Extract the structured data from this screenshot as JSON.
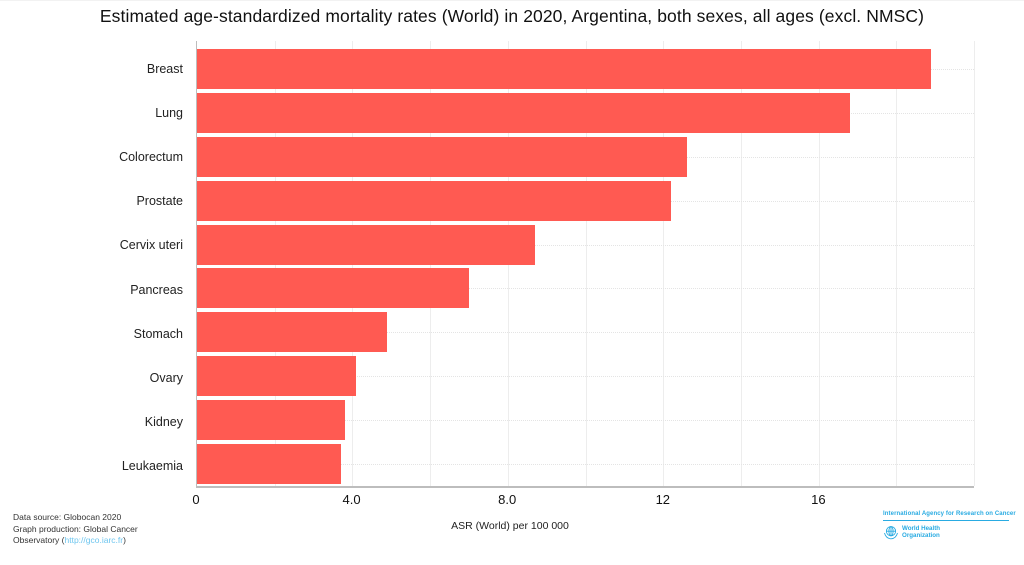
{
  "chart_data": {
    "type": "bar",
    "orientation": "horizontal",
    "title": "Estimated age-standardized mortality rates (World) in 2020, Argentina, both sexes, all ages (excl. NMSC)",
    "categories": [
      "Breast",
      "Lung",
      "Colorectum",
      "Prostate",
      "Cervix uteri",
      "Pancreas",
      "Stomach",
      "Ovary",
      "Kidney",
      "Leukaemia"
    ],
    "values": [
      18.9,
      16.8,
      12.6,
      12.2,
      8.7,
      7.0,
      4.9,
      4.1,
      3.8,
      3.7
    ],
    "xlabel": "ASR (World) per 100 000",
    "ylabel": "",
    "xlim": [
      0,
      20
    ],
    "xticks": [
      {
        "value": 0,
        "label": "0"
      },
      {
        "value": 4,
        "label": "4.0"
      },
      {
        "value": 8,
        "label": "8.0"
      },
      {
        "value": 12,
        "label": "12"
      },
      {
        "value": 16,
        "label": "16"
      }
    ],
    "grid_step": 2,
    "grid": "on",
    "legend": "none"
  },
  "colors": {
    "bar": "#FF5A52",
    "logo_blue": "#29ABE2",
    "link_blue": "#6EC6EF"
  },
  "footer": {
    "credits_line1": "Data source: Globocan 2020",
    "credits_line2": "Graph production: Global Cancer",
    "credits_line3_prefix": "Observatory (",
    "credits_link": "http://gco.iarc.fr",
    "credits_line3_suffix": ")",
    "axis_label": "ASR (World) per 100 000"
  },
  "logo": {
    "line1": "International Agency for Research on Cancer",
    "who_line1": "World Health",
    "who_line2": "Organization"
  }
}
